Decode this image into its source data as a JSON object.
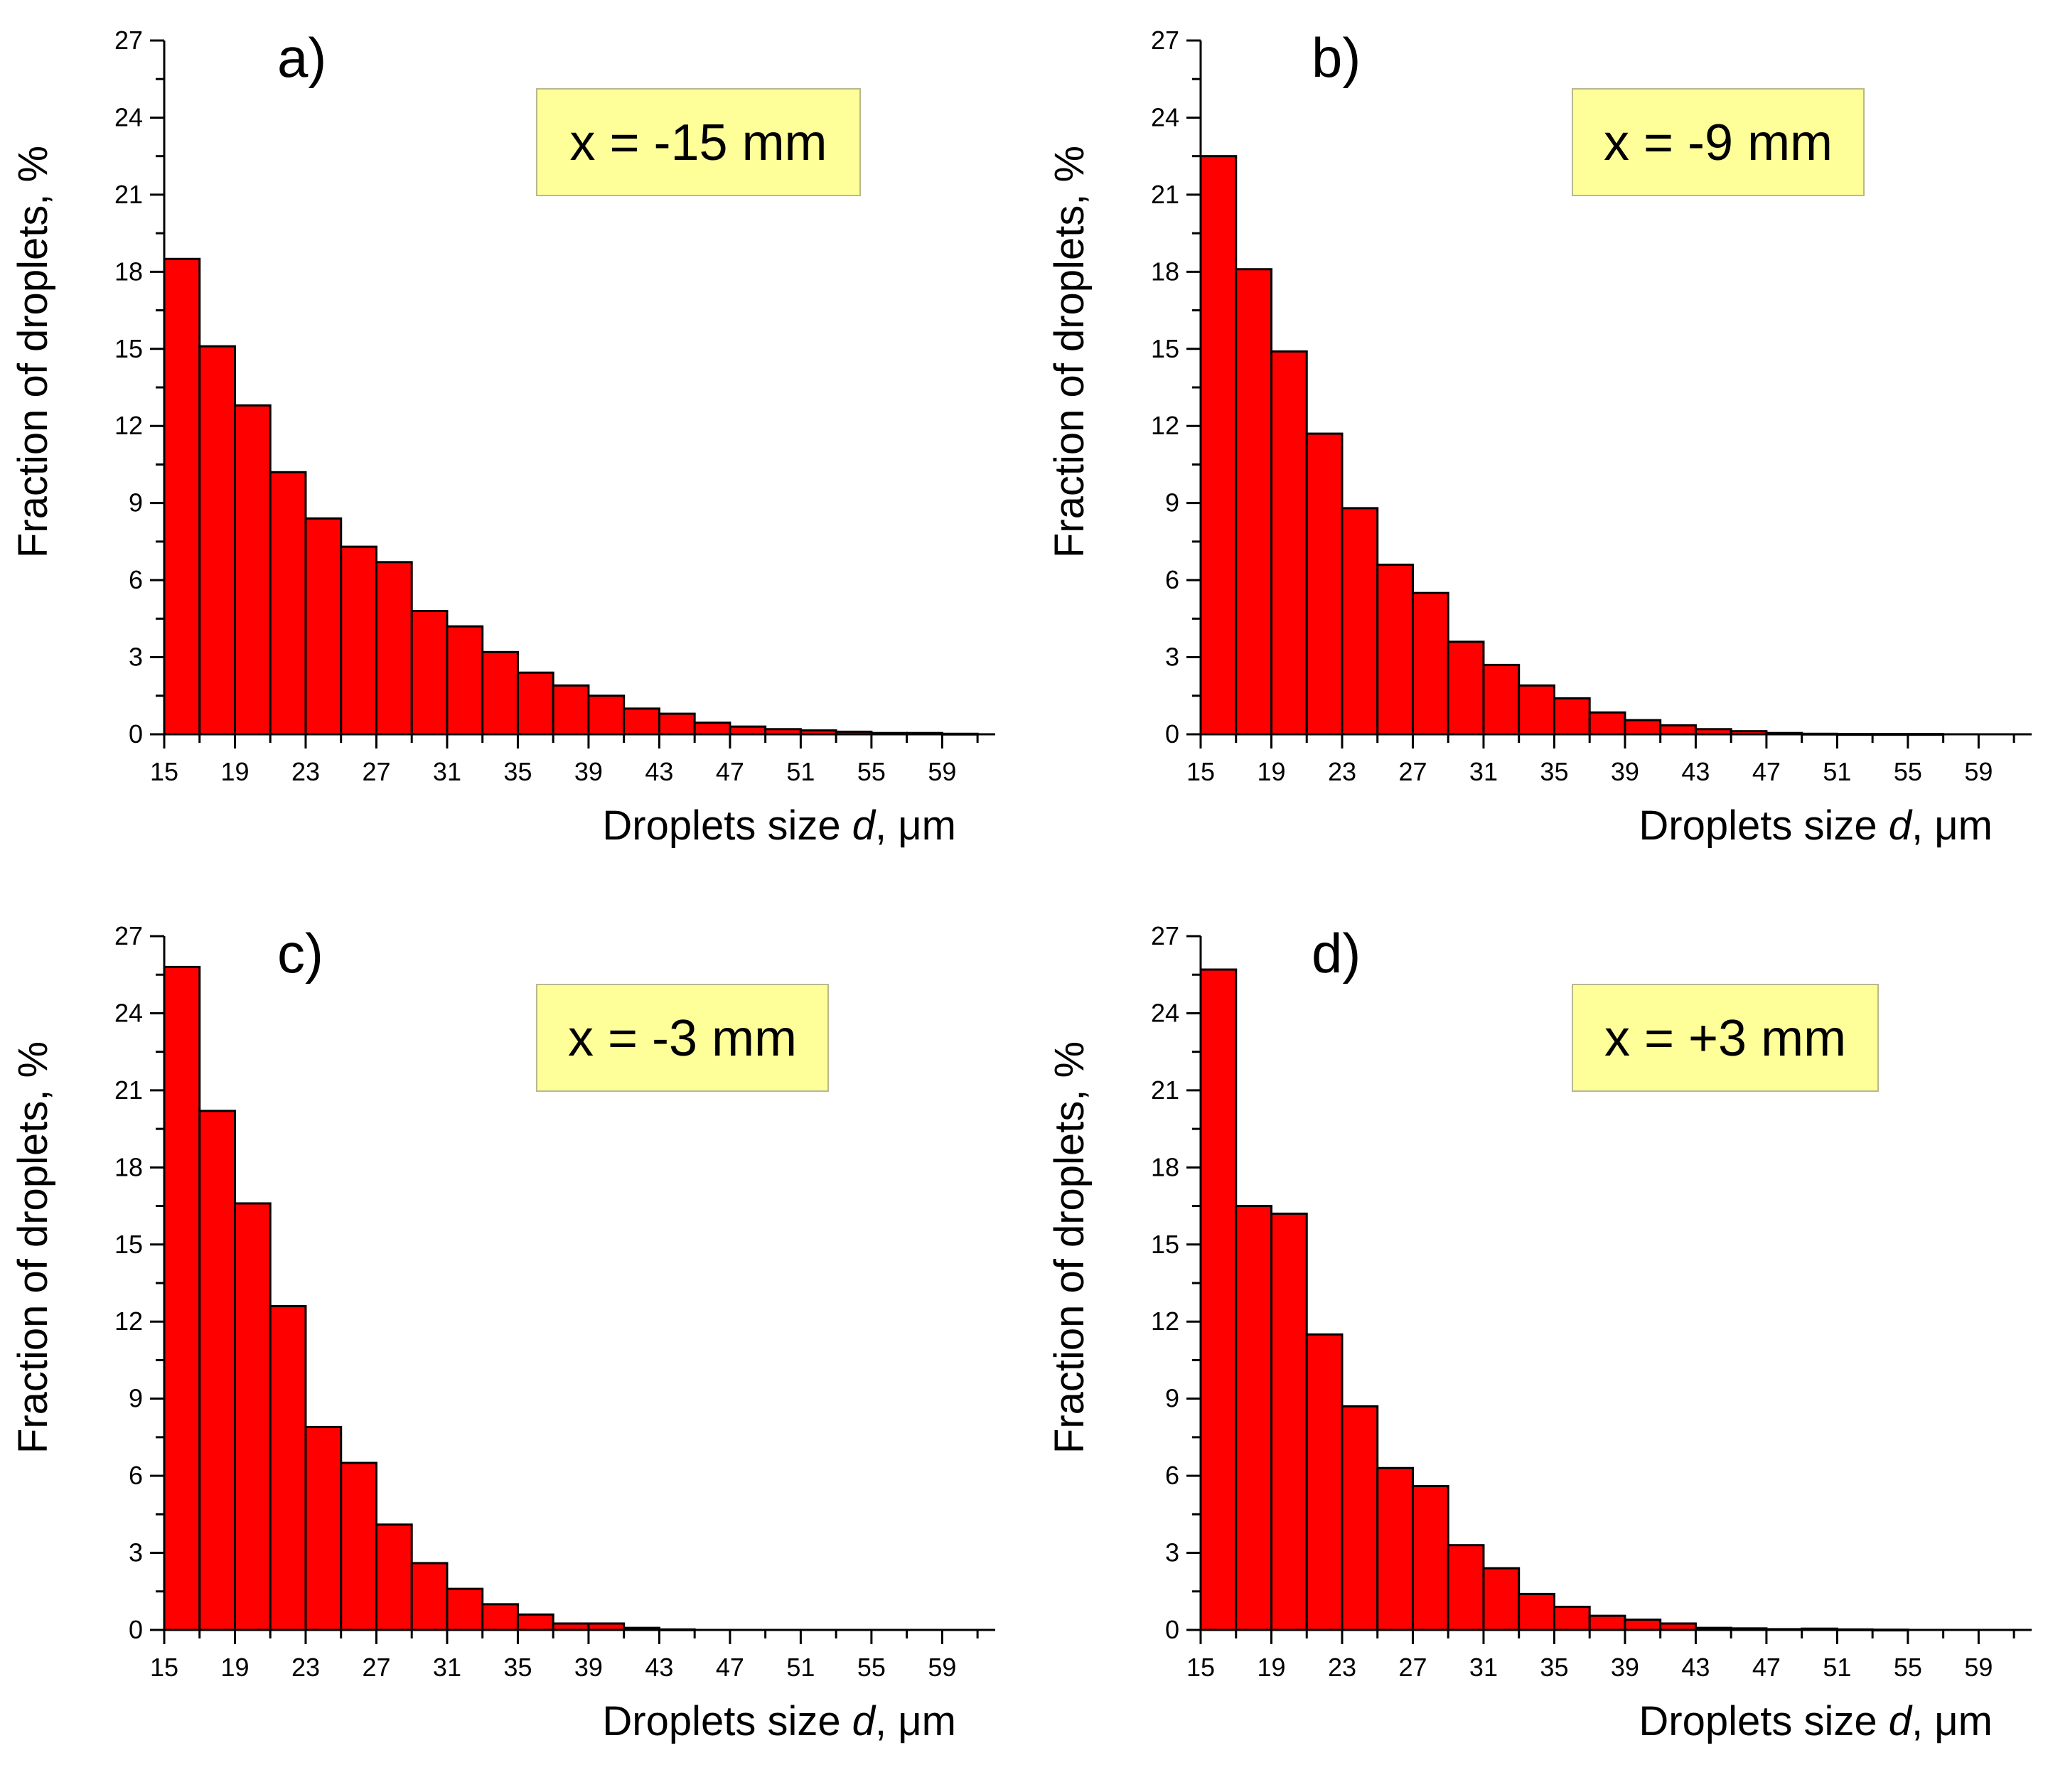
{
  "chart_data": [
    {
      "type": "bar",
      "panel_label": "a)",
      "annotation": "x = -15 mm",
      "xlabel_prefix": "Droplets size ",
      "xlabel_var": "d",
      "xlabel_suffix": ", μm",
      "ylabel": "Fraction of droplets, %",
      "xlim": [
        15,
        62
      ],
      "ylim": [
        0,
        27
      ],
      "xticks": [
        15,
        19,
        23,
        27,
        31,
        35,
        39,
        43,
        47,
        51,
        55,
        59
      ],
      "yticks": [
        0,
        3,
        6,
        9,
        12,
        15,
        18,
        21,
        24,
        27
      ],
      "bin_width": 2,
      "bin_starts": [
        15,
        17,
        19,
        21,
        23,
        25,
        27,
        29,
        31,
        33,
        35,
        37,
        39,
        41,
        43,
        45,
        47,
        49,
        51,
        53,
        55,
        57,
        59
      ],
      "values": [
        18.5,
        15.1,
        12.8,
        10.2,
        8.4,
        7.3,
        6.7,
        4.8,
        4.2,
        3.2,
        2.4,
        1.9,
        1.5,
        1.0,
        0.8,
        0.45,
        0.3,
        0.2,
        0.15,
        0.1,
        0.05,
        0.05,
        0.02
      ]
    },
    {
      "type": "bar",
      "panel_label": "b)",
      "annotation": "x = -9 mm",
      "xlabel_prefix": "Droplets size ",
      "xlabel_var": "d",
      "xlabel_suffix": ", μm",
      "ylabel": "Fraction of droplets, %",
      "xlim": [
        15,
        62
      ],
      "ylim": [
        0,
        27
      ],
      "xticks": [
        15,
        19,
        23,
        27,
        31,
        35,
        39,
        43,
        47,
        51,
        55,
        59
      ],
      "yticks": [
        0,
        3,
        6,
        9,
        12,
        15,
        18,
        21,
        24,
        27
      ],
      "bin_width": 2,
      "bin_starts": [
        15,
        17,
        19,
        21,
        23,
        25,
        27,
        29,
        31,
        33,
        35,
        37,
        39,
        41,
        43,
        45,
        47,
        49,
        51,
        53,
        55,
        57,
        59
      ],
      "values": [
        22.5,
        18.1,
        14.9,
        11.7,
        8.8,
        6.6,
        5.5,
        3.6,
        2.7,
        1.9,
        1.4,
        0.85,
        0.55,
        0.35,
        0.2,
        0.12,
        0.05,
        0.02,
        0.01,
        0.01,
        0.01,
        0.0,
        0.0
      ]
    },
    {
      "type": "bar",
      "panel_label": "c)",
      "annotation": "x = -3 mm",
      "xlabel_prefix": "Droplets size ",
      "xlabel_var": "d",
      "xlabel_suffix": ", μm",
      "ylabel": "Fraction of droplets, %",
      "xlim": [
        15,
        62
      ],
      "ylim": [
        0,
        27
      ],
      "xticks": [
        15,
        19,
        23,
        27,
        31,
        35,
        39,
        43,
        47,
        51,
        55,
        59
      ],
      "yticks": [
        0,
        3,
        6,
        9,
        12,
        15,
        18,
        21,
        24,
        27
      ],
      "bin_width": 2,
      "bin_starts": [
        15,
        17,
        19,
        21,
        23,
        25,
        27,
        29,
        31,
        33,
        35,
        37,
        39,
        41,
        43,
        45,
        47,
        49,
        51,
        53,
        55,
        57,
        59
      ],
      "values": [
        25.8,
        20.2,
        16.6,
        12.6,
        7.9,
        6.5,
        4.1,
        2.6,
        1.6,
        1.0,
        0.6,
        0.25,
        0.25,
        0.08,
        0.02,
        0.0,
        0.0,
        0.0,
        0.0,
        0.0,
        0.0,
        0.0,
        0.0
      ]
    },
    {
      "type": "bar",
      "panel_label": "d)",
      "annotation": "x = +3 mm",
      "xlabel_prefix": "Droplets size ",
      "xlabel_var": "d",
      "xlabel_suffix": ", μm",
      "ylabel": "Fraction of droplets, %",
      "xlim": [
        15,
        62
      ],
      "ylim": [
        0,
        27
      ],
      "xticks": [
        15,
        19,
        23,
        27,
        31,
        35,
        39,
        43,
        47,
        51,
        55,
        59
      ],
      "yticks": [
        0,
        3,
        6,
        9,
        12,
        15,
        18,
        21,
        24,
        27
      ],
      "bin_width": 2,
      "bin_starts": [
        15,
        17,
        19,
        21,
        23,
        25,
        27,
        29,
        31,
        33,
        35,
        37,
        39,
        41,
        43,
        45,
        47,
        49,
        51,
        53,
        55,
        57,
        59
      ],
      "values": [
        25.7,
        16.5,
        16.2,
        11.5,
        8.7,
        6.3,
        5.6,
        3.3,
        2.4,
        1.4,
        0.9,
        0.55,
        0.4,
        0.25,
        0.08,
        0.06,
        0.03,
        0.05,
        0.02,
        0.01,
        0.0,
        0.0,
        0.0
      ]
    }
  ],
  "colors": {
    "bar_fill": "#ff0000",
    "bar_edge": "#000000",
    "annotation_bg": "#ffff99"
  }
}
